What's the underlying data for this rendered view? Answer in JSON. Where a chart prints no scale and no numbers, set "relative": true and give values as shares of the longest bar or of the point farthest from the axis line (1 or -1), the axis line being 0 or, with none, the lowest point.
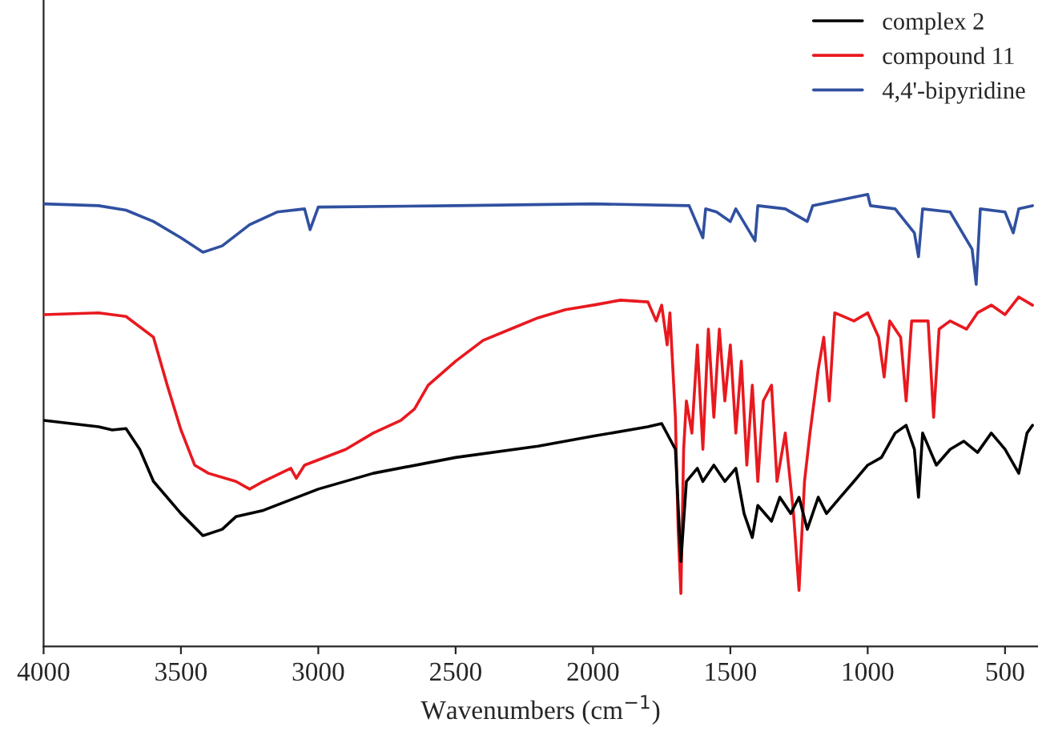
{
  "chart_data": {
    "type": "line",
    "relative": true,
    "xlabel": "Wavenumbers (cm$^{−1}$)",
    "xlim": [
      4000,
      380
    ],
    "xticks": [
      4000,
      3500,
      3000,
      2500,
      2000,
      1500,
      1000,
      500
    ],
    "legend": "top right",
    "grid": false,
    "series": [
      {
        "name": "complex 2",
        "color": "#000000",
        "x": [
          4000,
          3800,
          3750,
          3700,
          3650,
          3600,
          3500,
          3420,
          3350,
          3300,
          3200,
          3000,
          2800,
          2500,
          2200,
          2000,
          1800,
          1750,
          1700,
          1680,
          1660,
          1620,
          1600,
          1560,
          1520,
          1480,
          1450,
          1420,
          1400,
          1350,
          1320,
          1280,
          1250,
          1220,
          1180,
          1150,
          1100,
          1050,
          1000,
          950,
          900,
          860,
          830,
          815,
          800,
          750,
          700,
          650,
          600,
          550,
          500,
          450,
          420,
          400
        ],
        "values": [
          0.5,
          0.486,
          0.479,
          0.482,
          0.436,
          0.365,
          0.294,
          0.245,
          0.259,
          0.287,
          0.301,
          0.348,
          0.383,
          0.418,
          0.443,
          0.465,
          0.486,
          0.493,
          0.436,
          0.188,
          0.365,
          0.394,
          0.365,
          0.401,
          0.365,
          0.394,
          0.294,
          0.241,
          0.312,
          0.277,
          0.33,
          0.294,
          0.33,
          0.259,
          0.33,
          0.294,
          0.33,
          0.365,
          0.401,
          0.418,
          0.472,
          0.489,
          0.436,
          0.33,
          0.472,
          0.401,
          0.436,
          0.454,
          0.429,
          0.472,
          0.436,
          0.383,
          0.472,
          0.489
        ]
      },
      {
        "name": "compound 11",
        "color": "#e8191f",
        "x": [
          4000,
          3800,
          3700,
          3600,
          3550,
          3500,
          3450,
          3400,
          3300,
          3250,
          3200,
          3100,
          3080,
          3050,
          2900,
          2800,
          2700,
          2650,
          2600,
          2500,
          2400,
          2300,
          2200,
          2100,
          2000,
          1900,
          1800,
          1770,
          1750,
          1730,
          1720,
          1700,
          1690,
          1680,
          1670,
          1660,
          1640,
          1620,
          1600,
          1580,
          1560,
          1540,
          1520,
          1500,
          1480,
          1460,
          1440,
          1420,
          1400,
          1380,
          1350,
          1330,
          1300,
          1270,
          1250,
          1230,
          1210,
          1180,
          1160,
          1140,
          1120,
          1050,
          1000,
          960,
          940,
          920,
          880,
          860,
          840,
          780,
          760,
          740,
          700,
          640,
          600,
          550,
          500,
          450,
          400
        ],
        "values": [
          0.734,
          0.738,
          0.73,
          0.684,
          0.578,
          0.479,
          0.401,
          0.383,
          0.365,
          0.348,
          0.365,
          0.394,
          0.372,
          0.401,
          0.436,
          0.472,
          0.5,
          0.525,
          0.578,
          0.631,
          0.677,
          0.702,
          0.727,
          0.745,
          0.755,
          0.766,
          0.762,
          0.72,
          0.755,
          0.667,
          0.738,
          0.507,
          0.259,
          0.117,
          0.436,
          0.543,
          0.472,
          0.667,
          0.436,
          0.702,
          0.507,
          0.702,
          0.543,
          0.667,
          0.472,
          0.631,
          0.401,
          0.578,
          0.365,
          0.543,
          0.578,
          0.365,
          0.472,
          0.294,
          0.124,
          0.365,
          0.472,
          0.613,
          0.684,
          0.543,
          0.738,
          0.72,
          0.738,
          0.684,
          0.596,
          0.72,
          0.684,
          0.543,
          0.72,
          0.72,
          0.507,
          0.702,
          0.72,
          0.702,
          0.738,
          0.755,
          0.734,
          0.773,
          0.755
        ]
      },
      {
        "name": "4,4'-bipyridine",
        "color": "#3050a0",
        "x": [
          4000,
          3800,
          3700,
          3600,
          3500,
          3420,
          3350,
          3250,
          3150,
          3050,
          3030,
          3000,
          2500,
          2000,
          1650,
          1600,
          1590,
          1550,
          1500,
          1480,
          1410,
          1400,
          1300,
          1220,
          1200,
          1000,
          990,
          900,
          830,
          815,
          800,
          700,
          620,
          605,
          590,
          500,
          470,
          450,
          400
        ],
        "values": [
          0.979,
          0.975,
          0.965,
          0.94,
          0.904,
          0.872,
          0.886,
          0.933,
          0.961,
          0.968,
          0.922,
          0.972,
          0.975,
          0.979,
          0.975,
          0.904,
          0.968,
          0.961,
          0.94,
          0.968,
          0.897,
          0.975,
          0.968,
          0.94,
          0.975,
          1.0,
          0.975,
          0.968,
          0.915,
          0.862,
          0.968,
          0.961,
          0.879,
          0.801,
          0.968,
          0.961,
          0.915,
          0.968,
          0.975
        ]
      }
    ]
  }
}
